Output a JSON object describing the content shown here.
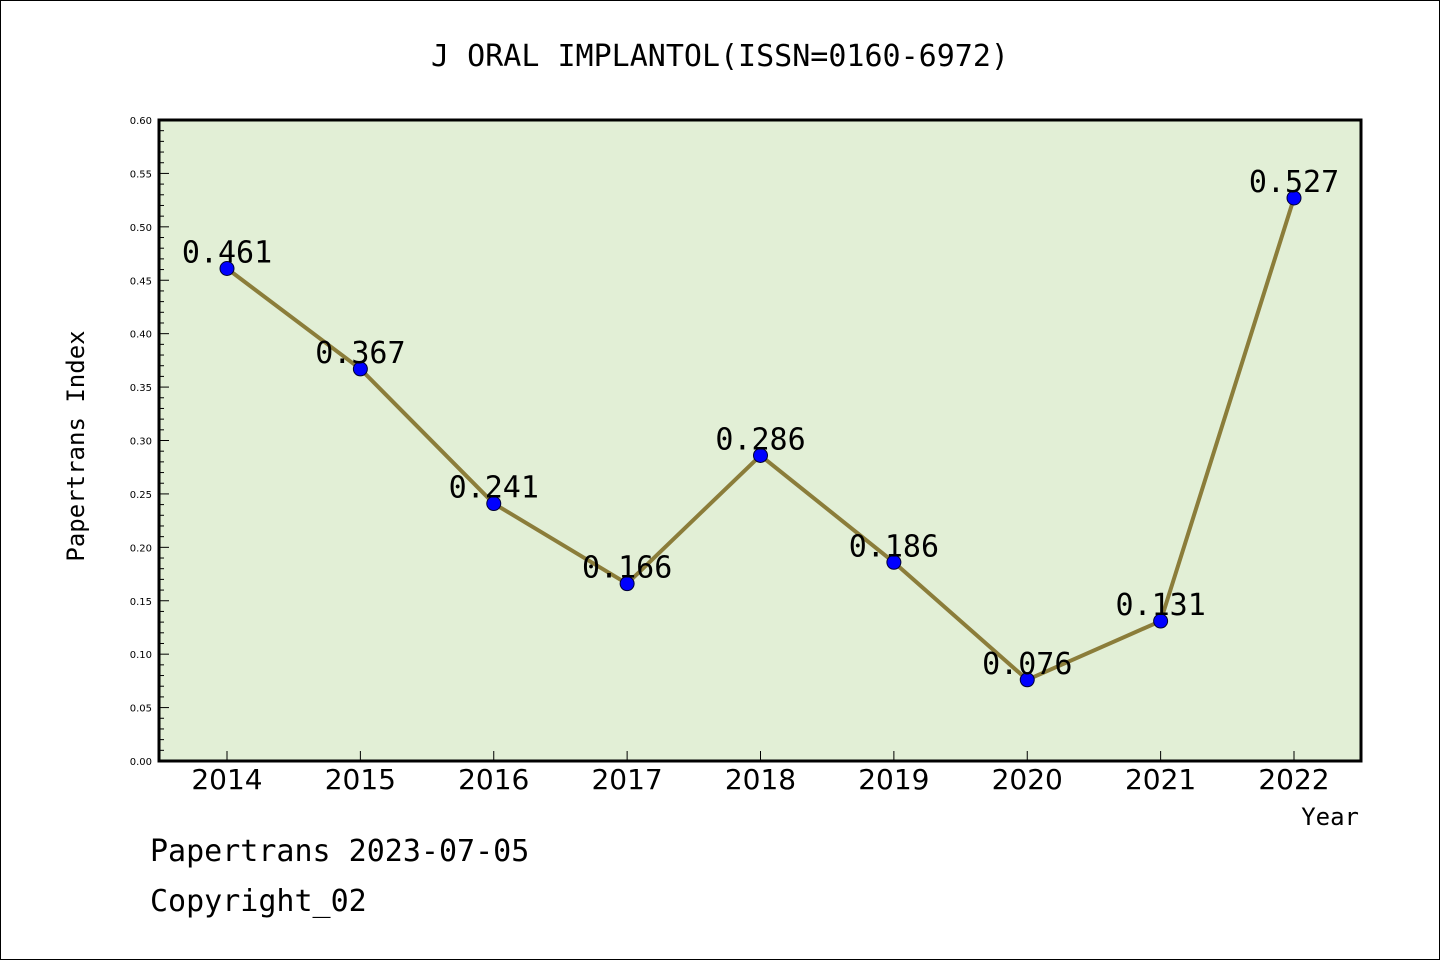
{
  "chart_data": {
    "type": "line",
    "title": "J ORAL IMPLANTOL(ISSN=0160-6972)",
    "xlabel": "Year",
    "ylabel": "Papertrans Index",
    "categories": [
      "2014",
      "2015",
      "2016",
      "2017",
      "2018",
      "2019",
      "2020",
      "2021",
      "2022"
    ],
    "values": [
      0.461,
      0.367,
      0.241,
      0.166,
      0.286,
      0.186,
      0.076,
      0.131,
      0.527
    ],
    "data_labels": [
      "0.461",
      "0.367",
      "0.241",
      "0.166",
      "0.286",
      "0.186",
      "0.076",
      "0.131",
      "0.527"
    ],
    "ylim": [
      0,
      0.6
    ],
    "y_ticks": [
      "0.00",
      "0.05",
      "0.10",
      "0.15",
      "0.20",
      "0.25",
      "0.30",
      "0.35",
      "0.40",
      "0.45",
      "0.50",
      "0.55",
      "0.60"
    ],
    "grid": false,
    "colors": {
      "plot_background": "#e2efd6",
      "line": "#8b7d3a",
      "marker": "#0000ff"
    }
  },
  "footer": {
    "line1": "Papertrans 2023-07-05",
    "line2": "Copyright_02"
  }
}
